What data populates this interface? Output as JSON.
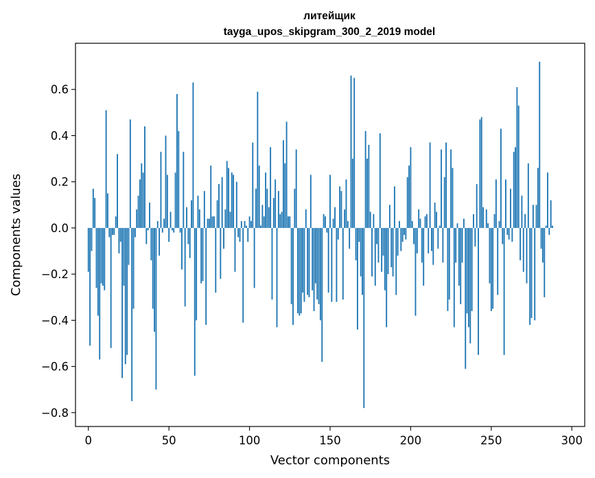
{
  "chart_data": {
    "type": "bar",
    "title": "литейщик",
    "subtitle": "tayga_upos_skipgram_300_2_2019 model",
    "xlabel": "Vector components",
    "ylabel": "Components values",
    "xlim": [
      -8,
      308
    ],
    "ylim": [
      -0.86,
      0.8
    ],
    "xticks": [
      0,
      50,
      100,
      150,
      200,
      250,
      300
    ],
    "xtick_labels": [
      "0",
      "50",
      "100",
      "150",
      "200",
      "250",
      "300"
    ],
    "yticks": [
      -0.8,
      -0.6,
      -0.4,
      -0.2,
      0.0,
      0.2,
      0.4,
      0.6
    ],
    "ytick_labels": [
      "−0.8",
      "−0.6",
      "−0.4",
      "−0.2",
      "0.0",
      "0.2",
      "0.4",
      "0.6"
    ],
    "bar_color": "#1f77b4",
    "grid": false,
    "values": [
      -0.19,
      -0.51,
      -0.1,
      0.17,
      0.13,
      -0.26,
      -0.38,
      -0.57,
      -0.24,
      -0.25,
      -0.27,
      0.51,
      0.15,
      -0.04,
      -0.52,
      -0.03,
      -0.03,
      0.05,
      0.32,
      -0.11,
      -0.06,
      -0.65,
      -0.25,
      -0.59,
      -0.55,
      -0.16,
      0.47,
      -0.75,
      -0.35,
      -0.04,
      0.08,
      0.14,
      0.21,
      0.28,
      0.24,
      0.44,
      -0.07,
      -0.01,
      0.11,
      -0.14,
      -0.35,
      -0.45,
      -0.7,
      0.03,
      -0.12,
      0.33,
      -0.02,
      0.04,
      0.4,
      0.23,
      -0.06,
      0.07,
      -0.01,
      -0.02,
      0.24,
      0.58,
      0.42,
      -0.02,
      -0.18,
      0.33,
      -0.34,
      0.09,
      -0.07,
      -0.13,
      0.12,
      0.63,
      -0.64,
      -0.4,
      0.14,
      0.08,
      -0.24,
      -0.23,
      0.16,
      -0.42,
      0.04,
      0.04,
      0.27,
      0.05,
      0.05,
      -0.28,
      0.12,
      0.19,
      -0.22,
      0.22,
      -0.09,
      0.08,
      0.29,
      0.26,
      0.07,
      0.24,
      0.23,
      -0.19,
      0.2,
      -0.04,
      -0.06,
      0.03,
      -0.41,
      0.03,
      0.01,
      -0.06,
      0.05,
      0.03,
      0.37,
      -0.26,
      0.17,
      0.59,
      0.27,
      0.01,
      0.1,
      0.05,
      0.24,
      0.17,
      0.09,
      0.35,
      -0.31,
      0.13,
      0.21,
      -0.43,
      0.16,
      0.06,
      0.07,
      0.38,
      0.28,
      0.46,
      0.05,
      0.05,
      -0.33,
      -0.42,
      0.17,
      0.34,
      -0.37,
      -0.38,
      -0.37,
      -0.28,
      -0.32,
      0.08,
      -0.29,
      -0.3,
      0.23,
      -0.27,
      -0.36,
      -0.24,
      -0.31,
      -0.33,
      -0.4,
      -0.58,
      0.06,
      0.05,
      -0.02,
      -0.28,
      0.23,
      -0.32,
      0.04,
      0.09,
      -0.32,
      -0.05,
      0.18,
      0.16,
      -0.31,
      0.08,
      0.21,
      0.03,
      -0.09,
      0.66,
      0.3,
      0.65,
      -0.14,
      -0.44,
      -0.06,
      -0.21,
      -0.29,
      -0.78,
      0.42,
      0.3,
      0.36,
      0.07,
      -0.21,
      0.06,
      -0.25,
      -0.07,
      -0.15,
      0.41,
      -0.19,
      -0.12,
      -0.27,
      -0.43,
      -0.2,
      0.1,
      -0.17,
      -0.21,
      0.18,
      -0.29,
      -0.12,
      0.03,
      -0.1,
      -0.06,
      -0.03,
      -0.05,
      0.22,
      0.27,
      0.35,
      0.03,
      -0.07,
      -0.38,
      -0.11,
      0.08,
      0.04,
      -0.15,
      -0.25,
      0.05,
      0.06,
      -0.11,
      0.37,
      -0.1,
      -0.16,
      0.11,
      0.07,
      -0.09,
      0.01,
      0.34,
      -0.15,
      0.22,
      0.37,
      -0.36,
      -0.31,
      0.34,
      0.26,
      -0.43,
      -0.15,
      0.02,
      -0.25,
      -0.33,
      -0.15,
      0.04,
      -0.61,
      -0.37,
      -0.43,
      -0.5,
      -0.36,
      0.06,
      -0.08,
      0.19,
      -0.55,
      0.47,
      0.48,
      0.09,
      0.0,
      0.08,
      0.02,
      -0.24,
      -0.36,
      -0.35,
      0.06,
      0.21,
      -0.29,
      0.03,
      0.43,
      -0.07,
      -0.55,
      0.21,
      -0.03,
      -0.05,
      0.17,
      -0.06,
      0.33,
      0.35,
      0.61,
      0.53,
      -0.14,
      0.14,
      -0.19,
      0.06,
      -0.24,
      0.28,
      -0.42,
      -0.39,
      0.1,
      -0.4,
      0.1,
      0.26,
      0.72,
      -0.09,
      -0.15,
      -0.3,
      0.01,
      0.24,
      -0.03,
      0.12,
      0.01
    ]
  }
}
